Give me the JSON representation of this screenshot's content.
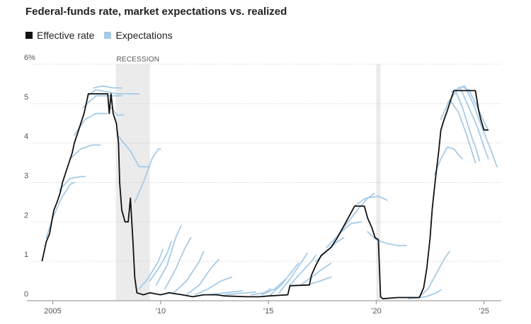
{
  "chart_data": {
    "type": "line",
    "title": "Federal-funds rate, market expectations vs. realized",
    "legend": [
      {
        "label": "Effective rate",
        "color": "#111111"
      },
      {
        "label": "Expectations",
        "color": "#a7cbe6"
      }
    ],
    "annotation": "RECESSION",
    "recessions": [
      [
        2007.92,
        2009.5
      ],
      [
        2020.0,
        2020.2
      ]
    ],
    "x_range": [
      2003.8,
      2025.8
    ],
    "ylim": [
      0,
      6
    ],
    "y_ticks": [
      {
        "v": 0,
        "label": "0"
      },
      {
        "v": 1,
        "label": "1"
      },
      {
        "v": 2,
        "label": "2"
      },
      {
        "v": 3,
        "label": "3"
      },
      {
        "v": 4,
        "label": "4"
      },
      {
        "v": 5,
        "label": "5"
      },
      {
        "v": 6,
        "label": "6%"
      }
    ],
    "x_ticks": [
      {
        "v": 2005,
        "label": "2005"
      },
      {
        "v": 2010,
        "label": "’10"
      },
      {
        "v": 2015,
        "label": "’15"
      },
      {
        "v": 2020,
        "label": "’20"
      },
      {
        "v": 2025,
        "label": "’25"
      }
    ],
    "series": [
      {
        "name": "Effective rate",
        "color": "#111111",
        "points": [
          [
            2004.5,
            1.0
          ],
          [
            2004.6,
            1.25
          ],
          [
            2004.7,
            1.5
          ],
          [
            2004.85,
            1.7
          ],
          [
            2004.95,
            2.0
          ],
          [
            2005.05,
            2.3
          ],
          [
            2005.2,
            2.5
          ],
          [
            2005.35,
            2.75
          ],
          [
            2005.45,
            3.0
          ],
          [
            2005.6,
            3.25
          ],
          [
            2005.75,
            3.5
          ],
          [
            2005.9,
            3.75
          ],
          [
            2006.0,
            4.0
          ],
          [
            2006.15,
            4.25
          ],
          [
            2006.3,
            4.5
          ],
          [
            2006.45,
            4.75
          ],
          [
            2006.55,
            5.0
          ],
          [
            2006.65,
            5.25
          ],
          [
            2007.0,
            5.25
          ],
          [
            2007.3,
            5.25
          ],
          [
            2007.55,
            5.25
          ],
          [
            2007.62,
            4.75
          ],
          [
            2007.7,
            5.25
          ],
          [
            2007.8,
            4.75
          ],
          [
            2007.95,
            4.5
          ],
          [
            2008.05,
            4.0
          ],
          [
            2008.1,
            3.0
          ],
          [
            2008.2,
            2.3
          ],
          [
            2008.35,
            2.0
          ],
          [
            2008.5,
            2.0
          ],
          [
            2008.6,
            2.6
          ],
          [
            2008.72,
            1.5
          ],
          [
            2008.8,
            0.6
          ],
          [
            2008.9,
            0.2
          ],
          [
            2009.2,
            0.15
          ],
          [
            2009.5,
            0.2
          ],
          [
            2010.0,
            0.15
          ],
          [
            2010.4,
            0.2
          ],
          [
            2011.0,
            0.15
          ],
          [
            2011.5,
            0.1
          ],
          [
            2012.0,
            0.15
          ],
          [
            2012.6,
            0.15
          ],
          [
            2013.0,
            0.12
          ],
          [
            2014.0,
            0.1
          ],
          [
            2014.6,
            0.1
          ],
          [
            2015.0,
            0.12
          ],
          [
            2015.9,
            0.15
          ],
          [
            2016.0,
            0.38
          ],
          [
            2016.9,
            0.4
          ],
          [
            2017.0,
            0.65
          ],
          [
            2017.2,
            0.9
          ],
          [
            2017.45,
            1.15
          ],
          [
            2017.9,
            1.35
          ],
          [
            2018.2,
            1.6
          ],
          [
            2018.45,
            1.85
          ],
          [
            2018.75,
            2.15
          ],
          [
            2019.0,
            2.4
          ],
          [
            2019.45,
            2.4
          ],
          [
            2019.6,
            2.1
          ],
          [
            2019.8,
            1.85
          ],
          [
            2019.95,
            1.6
          ],
          [
            2020.1,
            1.55
          ],
          [
            2020.2,
            0.1
          ],
          [
            2020.3,
            0.05
          ],
          [
            2021.0,
            0.08
          ],
          [
            2021.5,
            0.08
          ],
          [
            2022.0,
            0.08
          ],
          [
            2022.2,
            0.33
          ],
          [
            2022.35,
            0.83
          ],
          [
            2022.5,
            1.6
          ],
          [
            2022.6,
            2.33
          ],
          [
            2022.75,
            3.1
          ],
          [
            2022.9,
            3.8
          ],
          [
            2023.0,
            4.33
          ],
          [
            2023.15,
            4.6
          ],
          [
            2023.3,
            4.83
          ],
          [
            2023.45,
            5.08
          ],
          [
            2023.6,
            5.33
          ],
          [
            2024.0,
            5.33
          ],
          [
            2024.6,
            5.33
          ],
          [
            2024.75,
            4.83
          ],
          [
            2024.85,
            4.6
          ],
          [
            2025.0,
            4.33
          ],
          [
            2025.2,
            4.33
          ]
        ]
      },
      {
        "name": "Expectations",
        "color": "#a7cbe6",
        "curves": [
          [
            [
              2004.7,
              1.6
            ],
            [
              2005.0,
              2.1
            ],
            [
              2005.4,
              2.6
            ],
            [
              2005.8,
              2.95
            ],
            [
              2006.0,
              3.0
            ]
          ],
          [
            [
              2005.3,
              2.8
            ],
            [
              2005.8,
              3.1
            ],
            [
              2006.3,
              3.15
            ],
            [
              2006.5,
              3.15
            ]
          ],
          [
            [
              2005.8,
              3.6
            ],
            [
              2006.3,
              3.85
            ],
            [
              2006.8,
              3.95
            ],
            [
              2007.2,
              3.95
            ]
          ],
          [
            [
              2006.0,
              4.2
            ],
            [
              2006.5,
              4.6
            ],
            [
              2007.0,
              4.75
            ],
            [
              2007.5,
              4.75
            ]
          ],
          [
            [
              2006.4,
              4.9
            ],
            [
              2007.0,
              5.2
            ],
            [
              2007.6,
              5.2
            ],
            [
              2008.2,
              5.2
            ]
          ],
          [
            [
              2006.6,
              5.2
            ],
            [
              2007.0,
              5.35
            ],
            [
              2007.5,
              5.3
            ],
            [
              2008.0,
              5.25
            ],
            [
              2009.0,
              5.25
            ]
          ],
          [
            [
              2006.9,
              5.4
            ],
            [
              2007.3,
              5.45
            ],
            [
              2007.8,
              5.4
            ],
            [
              2008.2,
              5.4
            ]
          ],
          [
            [
              2007.7,
              4.9
            ],
            [
              2008.0,
              4.7
            ],
            [
              2008.3,
              4.72
            ]
          ],
          [
            [
              2008.0,
              4.2
            ],
            [
              2008.3,
              4.0
            ],
            [
              2008.6,
              3.8
            ],
            [
              2009.0,
              3.4
            ],
            [
              2009.5,
              3.4
            ]
          ],
          [
            [
              2008.8,
              2.5
            ],
            [
              2009.2,
              3.0
            ],
            [
              2009.6,
              3.6
            ],
            [
              2009.9,
              3.85
            ],
            [
              2010.0,
              3.85
            ]
          ],
          [
            [
              2009.0,
              0.3
            ],
            [
              2009.4,
              0.55
            ],
            [
              2009.9,
              1.0
            ],
            [
              2010.1,
              1.3
            ]
          ],
          [
            [
              2009.5,
              0.5
            ],
            [
              2010.0,
              0.9
            ],
            [
              2010.3,
              1.2
            ],
            [
              2010.5,
              1.5
            ]
          ],
          [
            [
              2009.8,
              0.4
            ],
            [
              2010.3,
              0.9
            ],
            [
              2010.7,
              1.6
            ],
            [
              2010.95,
              1.9
            ]
          ],
          [
            [
              2010.2,
              0.3
            ],
            [
              2010.7,
              0.8
            ],
            [
              2011.1,
              1.3
            ],
            [
              2011.4,
              1.6
            ]
          ],
          [
            [
              2010.6,
              0.2
            ],
            [
              2011.2,
              0.5
            ],
            [
              2011.8,
              1.0
            ],
            [
              2012.0,
              1.25
            ]
          ],
          [
            [
              2011.2,
              0.15
            ],
            [
              2011.8,
              0.4
            ],
            [
              2012.3,
              0.8
            ],
            [
              2012.7,
              1.05
            ]
          ],
          [
            [
              2011.6,
              0.15
            ],
            [
              2012.2,
              0.3
            ],
            [
              2012.8,
              0.5
            ],
            [
              2013.3,
              0.6
            ]
          ],
          [
            [
              2012.2,
              0.15
            ],
            [
              2013.0,
              0.2
            ],
            [
              2013.8,
              0.25
            ]
          ],
          [
            [
              2013.0,
              0.15
            ],
            [
              2014.0,
              0.2
            ],
            [
              2014.4,
              0.22
            ]
          ],
          [
            [
              2014.2,
              0.15
            ],
            [
              2014.8,
              0.2
            ],
            [
              2015.1,
              0.3
            ]
          ],
          [
            [
              2014.7,
              0.15
            ],
            [
              2015.3,
              0.3
            ],
            [
              2015.8,
              0.55
            ]
          ],
          [
            [
              2015.1,
              0.15
            ],
            [
              2015.6,
              0.4
            ],
            [
              2016.1,
              0.75
            ],
            [
              2016.4,
              0.95
            ]
          ],
          [
            [
              2015.5,
              0.2
            ],
            [
              2016.0,
              0.55
            ],
            [
              2016.5,
              0.95
            ],
            [
              2016.8,
              1.2
            ]
          ],
          [
            [
              2016.0,
              0.4
            ],
            [
              2016.5,
              0.7
            ],
            [
              2017.0,
              1.0
            ],
            [
              2017.2,
              1.15
            ]
          ],
          [
            [
              2016.5,
              0.4
            ],
            [
              2017.0,
              0.6
            ],
            [
              2017.5,
              0.8
            ],
            [
              2017.9,
              0.95
            ]
          ],
          [
            [
              2016.8,
              0.4
            ],
            [
              2017.4,
              0.5
            ],
            [
              2017.9,
              0.6
            ]
          ],
          [
            [
              2017.2,
              1.0
            ],
            [
              2017.8,
              1.3
            ],
            [
              2018.2,
              1.5
            ],
            [
              2018.5,
              1.6
            ]
          ],
          [
            [
              2017.7,
              1.35
            ],
            [
              2018.3,
              1.7
            ],
            [
              2018.8,
              1.95
            ],
            [
              2019.3,
              2.0
            ]
          ],
          [
            [
              2018.2,
              1.65
            ],
            [
              2018.7,
              2.0
            ],
            [
              2019.2,
              2.35
            ],
            [
              2019.6,
              2.6
            ],
            [
              2019.9,
              2.72
            ]
          ],
          [
            [
              2018.6,
              2.0
            ],
            [
              2019.0,
              2.4
            ],
            [
              2019.5,
              2.6
            ],
            [
              2020.1,
              2.65
            ],
            [
              2020.5,
              2.55
            ]
          ],
          [
            [
              2019.6,
              1.75
            ],
            [
              2020.0,
              1.55
            ],
            [
              2020.5,
              1.45
            ],
            [
              2021.0,
              1.4
            ],
            [
              2021.4,
              1.4
            ]
          ],
          [
            [
              2021.5,
              0.05
            ],
            [
              2022.3,
              0.1
            ],
            [
              2022.8,
              0.2
            ],
            [
              2023.0,
              0.28
            ]
          ],
          [
            [
              2022.0,
              0.1
            ],
            [
              2022.4,
              0.3
            ],
            [
              2022.8,
              0.7
            ],
            [
              2023.2,
              1.1
            ],
            [
              2023.4,
              1.25
            ]
          ],
          [
            [
              2022.7,
              3.2
            ],
            [
              2023.0,
              3.6
            ],
            [
              2023.3,
              3.9
            ],
            [
              2023.6,
              3.85
            ],
            [
              2023.9,
              3.65
            ],
            [
              2024.0,
              3.6
            ]
          ],
          [
            [
              2023.0,
              4.6
            ],
            [
              2023.4,
              5.1
            ],
            [
              2023.8,
              4.8
            ],
            [
              2024.2,
              4.2
            ],
            [
              2024.6,
              3.5
            ]
          ],
          [
            [
              2023.3,
              5.0
            ],
            [
              2023.7,
              5.3
            ],
            [
              2024.0,
              4.9
            ],
            [
              2024.4,
              4.2
            ],
            [
              2024.6,
              3.9
            ],
            [
              2024.8,
              3.55
            ]
          ],
          [
            [
              2023.5,
              5.3
            ],
            [
              2023.9,
              5.4
            ],
            [
              2024.3,
              4.9
            ],
            [
              2024.7,
              4.4
            ],
            [
              2025.0,
              3.9
            ],
            [
              2025.2,
              3.6
            ]
          ],
          [
            [
              2023.8,
              5.4
            ],
            [
              2024.1,
              5.45
            ],
            [
              2024.5,
              5.0
            ],
            [
              2024.9,
              4.4
            ],
            [
              2025.3,
              3.85
            ],
            [
              2025.6,
              3.4
            ]
          ],
          [
            [
              2024.0,
              5.42
            ],
            [
              2024.3,
              5.35
            ],
            [
              2024.7,
              4.9
            ],
            [
              2025.0,
              4.55
            ],
            [
              2025.2,
              4.32
            ]
          ]
        ]
      }
    ]
  }
}
